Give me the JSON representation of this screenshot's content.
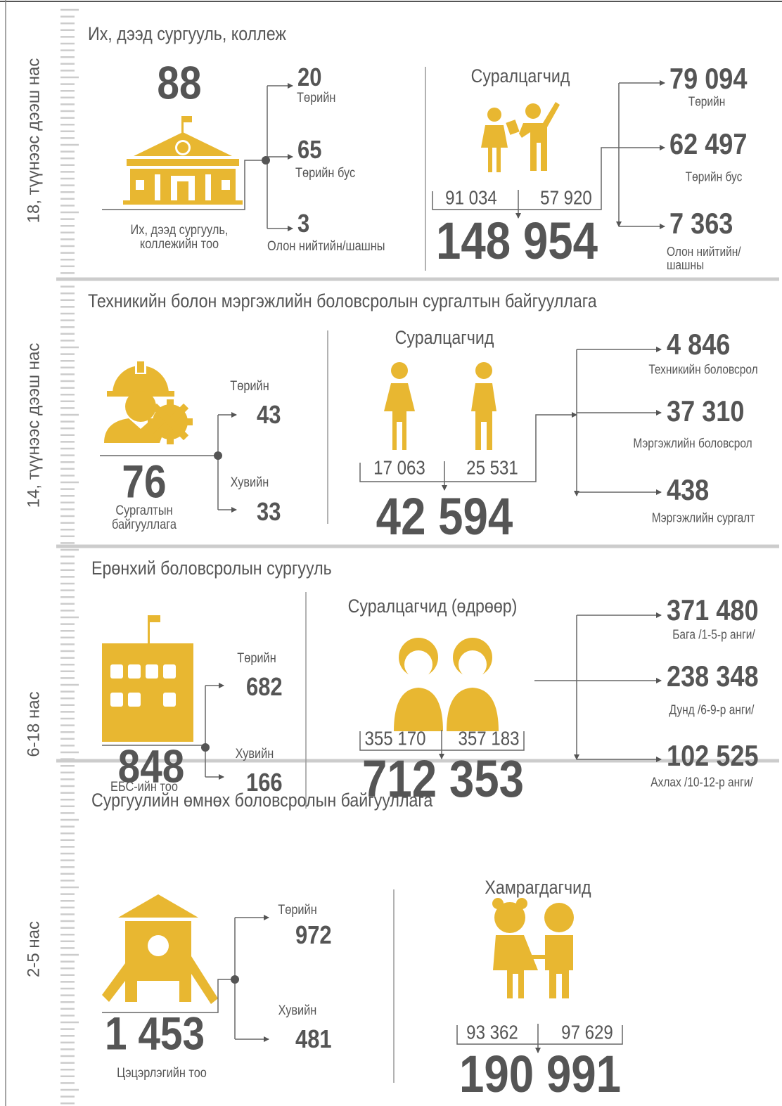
{
  "sections": [
    {
      "age": "18, түүнээс дээш нас",
      "title": "Их, дээд сургууль, коллеж",
      "institutions": {
        "total": "88",
        "total_label": "Их, дээд сургууль, коллежийн тоо",
        "breakdown": [
          {
            "value": "20",
            "label": "Төрийн"
          },
          {
            "value": "65",
            "label": "Төрийн бус"
          },
          {
            "value": "3",
            "label": "Олон нийтийн/шашны"
          }
        ]
      },
      "students": {
        "heading": "Суралцагчид",
        "female": "91 034",
        "male": "57 920",
        "total": "148 954",
        "breakdown": [
          {
            "value": "79 094",
            "label": "Төрийн"
          },
          {
            "value": "62 497",
            "label": "Төрийн бус"
          },
          {
            "value": "7 363",
            "label": "Олон нийтийн/ шашны"
          }
        ]
      }
    },
    {
      "age": "14, түүнээс дээш нас",
      "title": "Техникийн болон мэргэжлийн боловсролын сургалтын байгууллага",
      "institutions": {
        "total": "76",
        "total_label": "Сургалтын байгууллага",
        "breakdown": [
          {
            "value": "43",
            "label": "Төрийн"
          },
          {
            "value": "33",
            "label": "Хувийн"
          }
        ]
      },
      "students": {
        "heading": "Суралцагчид",
        "female": "17 063",
        "male": "25 531",
        "total": "42 594",
        "breakdown": [
          {
            "value": "4 846",
            "label": "Техникийн боловсрол"
          },
          {
            "value": "37 310",
            "label": "Мэргэжлийн боловсрол"
          },
          {
            "value": "438",
            "label": "Мэргэжлийн сургалт"
          }
        ]
      }
    },
    {
      "age": "6-18 нас",
      "title": "Ерөнхий боловсролын сургууль",
      "institutions": {
        "total": "848",
        "total_label": "ЕБС-ийн тоо",
        "breakdown": [
          {
            "value": "682",
            "label": "Төрийн"
          },
          {
            "value": "166",
            "label": "Хувийн"
          }
        ]
      },
      "students": {
        "heading": "Суралцагчид (өдрөөр)",
        "female": "355 170",
        "male": "357 183",
        "total": "712 353",
        "breakdown": [
          {
            "value": "371 480",
            "label": "Бага /1-5-р анги/"
          },
          {
            "value": "238 348",
            "label": "Дунд /6-9-р анги/"
          },
          {
            "value": "102 525",
            "label": "Ахлах /10-12-р анги/"
          }
        ]
      }
    },
    {
      "age": "2-5 нас",
      "title": "Сургуулийн өмнөх боловсролын байгууллага",
      "institutions": {
        "total": "1 453",
        "total_label": "Цэцэрлэгийн тоо",
        "breakdown": [
          {
            "value": "972",
            "label": "Төрийн"
          },
          {
            "value": "481",
            "label": "Хувийн"
          }
        ]
      },
      "students": {
        "heading": "Хамрагдагчид",
        "female": "93 362",
        "male": "97 629",
        "total": "190 991"
      }
    }
  ]
}
